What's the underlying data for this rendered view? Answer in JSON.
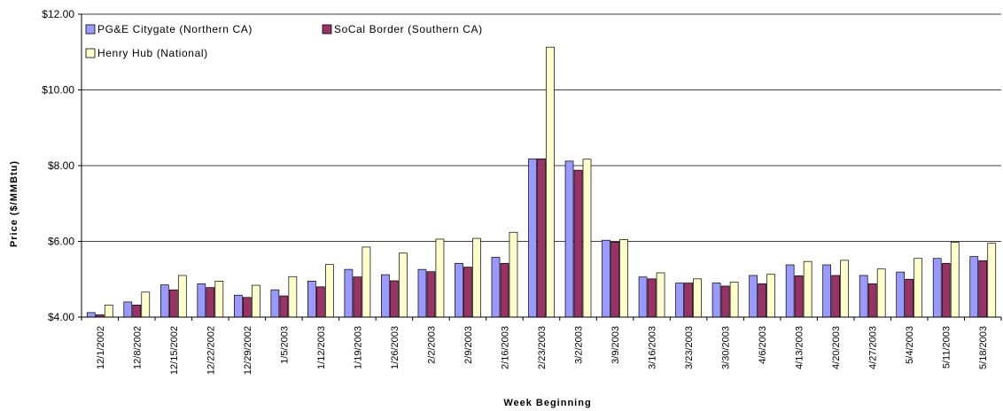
{
  "chart_data": {
    "type": "bar",
    "title": "",
    "xlabel": "Week Beginning",
    "ylabel": "Price ($/MMBtu)",
    "ylim": [
      4,
      12
    ],
    "yticks": [
      4,
      6,
      8,
      10,
      12
    ],
    "ytick_labels": [
      "$4.00",
      "$6.00",
      "$8.00",
      "$10.00",
      "$12.00"
    ],
    "grid": true,
    "legend_position": "top-left",
    "categories": [
      "12/1/2002",
      "12/8/2002",
      "12/15/2002",
      "12/22/2002",
      "12/29/2002",
      "1/5/2003",
      "1/12/2003",
      "1/19/2003",
      "1/26/2003",
      "2/2/2003",
      "2/9/2003",
      "2/16/2003",
      "2/23/2003",
      "3/2/2003",
      "3/9/2003",
      "3/16/2003",
      "3/23/2003",
      "3/30/2003",
      "4/6/2003",
      "4/13/2003",
      "4/20/2003",
      "4/27/2003",
      "5/4/2003",
      "5/11/2003",
      "5/18/2003"
    ],
    "series": [
      {
        "name": "PG&E Citygate (Northern CA)",
        "color": "#9999ff",
        "values": [
          4.12,
          4.4,
          4.85,
          4.88,
          4.58,
          4.72,
          4.95,
          5.26,
          5.12,
          5.26,
          5.42,
          5.58,
          8.18,
          8.12,
          6.03,
          5.06,
          4.9,
          4.9,
          5.1,
          5.38,
          5.38,
          5.1,
          5.19,
          5.55,
          5.6
        ]
      },
      {
        "name": "SoCal Border (Southern CA)",
        "color": "#993366",
        "values": [
          4.06,
          4.32,
          4.72,
          4.78,
          4.52,
          4.56,
          4.8,
          5.06,
          4.96,
          5.2,
          5.32,
          5.42,
          8.18,
          7.88,
          5.98,
          5.01,
          4.9,
          4.82,
          4.88,
          5.09,
          5.1,
          4.88,
          5.0,
          5.42,
          5.49
        ]
      },
      {
        "name": "Henry Hub (National)",
        "color": "#ffffcc",
        "values": [
          4.32,
          4.66,
          5.1,
          4.95,
          4.84,
          5.07,
          5.39,
          5.85,
          5.69,
          6.06,
          6.08,
          6.24,
          11.13,
          8.17,
          6.05,
          5.17,
          5.01,
          4.92,
          5.13,
          5.47,
          5.5,
          5.27,
          5.55,
          5.98,
          5.95
        ]
      }
    ]
  }
}
